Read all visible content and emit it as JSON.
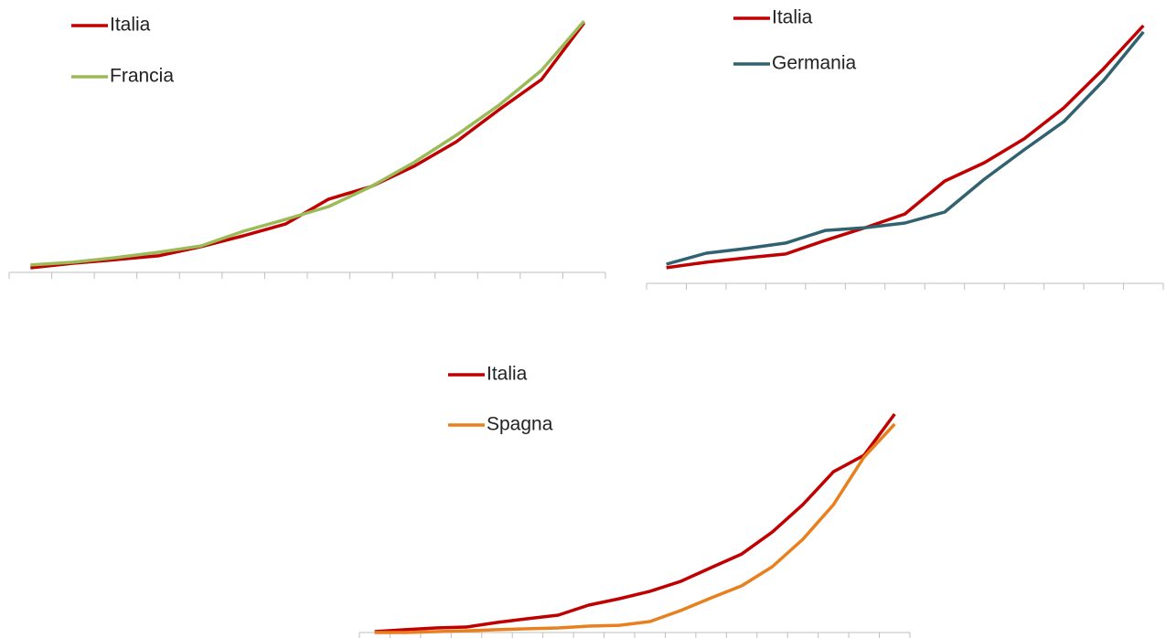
{
  "chart_data": [
    {
      "type": "line",
      "categories": [
        null,
        null,
        null,
        null,
        null,
        null,
        null,
        null,
        null,
        null,
        null,
        null,
        null,
        null
      ],
      "ylim": [
        0,
        100
      ],
      "legend": "upper left",
      "series": [
        {
          "name": "Italia",
          "color": "#c00000",
          "values": [
            1.8,
            3.6,
            5.0,
            6.5,
            10.1,
            14.4,
            19.1,
            28.8,
            33.8,
            41.7,
            51.4,
            64.0,
            75.9,
            98.2
          ]
        },
        {
          "name": "Francia",
          "color": "#9bbb59",
          "values": [
            2.9,
            4.0,
            5.8,
            7.9,
            10.4,
            16.2,
            20.9,
            25.9,
            33.8,
            43.2,
            54.0,
            65.8,
            79.5,
            98.9
          ]
        }
      ]
    },
    {
      "type": "line",
      "categories": [
        null,
        null,
        null,
        null,
        null,
        null,
        null,
        null,
        null,
        null,
        null,
        null,
        null
      ],
      "ylim": [
        0,
        100
      ],
      "legend": "upper left",
      "series": [
        {
          "name": "Italia",
          "color": "#c00000",
          "values": [
            5.7,
            7.7,
            9.3,
            10.7,
            15.7,
            20.3,
            25.3,
            37.3,
            44.0,
            52.7,
            64.0,
            78.3,
            94.0
          ]
        },
        {
          "name": "Germania",
          "color": "#31626f",
          "values": [
            7.0,
            11.0,
            12.7,
            14.7,
            19.3,
            20.3,
            22.0,
            26.0,
            38.0,
            48.7,
            59.0,
            74.0,
            91.7
          ]
        }
      ]
    },
    {
      "type": "line",
      "categories": [
        null,
        null,
        null,
        null,
        null,
        null,
        null,
        null,
        null,
        null,
        null,
        null,
        null,
        null,
        null,
        null,
        null,
        null
      ],
      "ylim": [
        0,
        100
      ],
      "legend": "upper left",
      "series": [
        {
          "name": "Italia",
          "color": "#c00000",
          "values": [
            0.4,
            1.3,
            2.1,
            2.5,
            4.6,
            6.3,
            7.9,
            12.5,
            15.4,
            18.8,
            23.3,
            29.6,
            35.8,
            45.8,
            58.3,
            73.3,
            80.8,
            99.6
          ]
        },
        {
          "name": "Spagna",
          "color": "#e8801f",
          "values": [
            0,
            0,
            0.4,
            0.8,
            1.3,
            1.7,
            2.1,
            2.9,
            3.3,
            5.0,
            10.0,
            15.8,
            21.3,
            30.0,
            42.5,
            58.3,
            80.0,
            95.0
          ]
        }
      ]
    }
  ]
}
